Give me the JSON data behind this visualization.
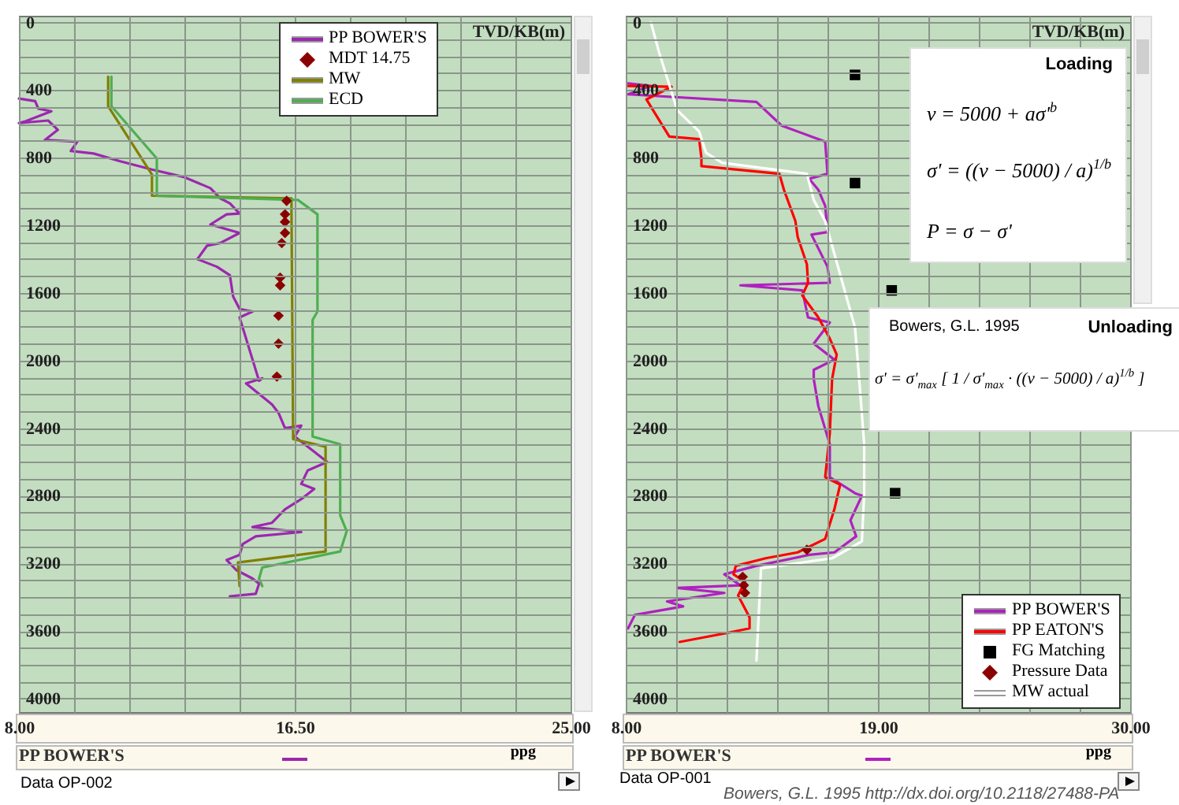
{
  "chart_data": [
    {
      "type": "line",
      "ylabel": "TVD/KB(m)",
      "xlabel": "PP BOWER'S",
      "grid": true,
      "legend": "top",
      "xlim": [
        8,
        25
      ],
      "ylim": [
        4080,
        -40
      ],
      "xticks": [
        {
          "value": 8,
          "label": "8.00"
        },
        {
          "value": 9.7,
          "label": null
        },
        {
          "value": 11.4,
          "label": null
        },
        {
          "value": 13.1,
          "label": null
        },
        {
          "value": 14.8,
          "label": null
        },
        {
          "value": 16.5,
          "label": "16.50"
        },
        {
          "value": 18.2,
          "label": null
        },
        {
          "value": 19.9,
          "label": null
        },
        {
          "value": 21.6,
          "label": null
        },
        {
          "value": 23.3,
          "label": null
        },
        {
          "value": 25,
          "label": "25.00"
        }
      ],
      "yticks": [
        0,
        {
          "value": 100,
          "label": null
        },
        {
          "value": 200,
          "label": null
        },
        {
          "value": 300,
          "label": null
        },
        400,
        {
          "value": 500,
          "label": null
        },
        {
          "value": 600,
          "label": null
        },
        {
          "value": 700,
          "label": null
        },
        800,
        {
          "value": 900,
          "label": null
        },
        {
          "value": 1000,
          "label": null
        },
        {
          "value": 1100,
          "label": null
        },
        1200,
        {
          "value": 1300,
          "label": null
        },
        {
          "value": 1400,
          "label": null
        },
        {
          "value": 1500,
          "label": null
        },
        1600,
        {
          "value": 1700,
          "label": null
        },
        {
          "value": 1800,
          "label": null
        },
        {
          "value": 1900,
          "label": null
        },
        2000,
        {
          "value": 2100,
          "label": null
        },
        {
          "value": 2200,
          "label": null
        },
        {
          "value": 2300,
          "label": null
        },
        2400,
        {
          "value": 2500,
          "label": null
        },
        {
          "value": 2600,
          "label": null
        },
        {
          "value": 2700,
          "label": null
        },
        2800,
        {
          "value": 2900,
          "label": null
        },
        {
          "value": 3000,
          "label": null
        },
        {
          "value": 3100,
          "label": null
        },
        3200,
        {
          "value": 3300,
          "label": null
        },
        {
          "value": 3400,
          "label": null
        },
        {
          "value": 3500,
          "label": null
        },
        3600,
        {
          "value": 3700,
          "label": null
        },
        {
          "value": 3800,
          "label": null
        },
        {
          "value": 3900,
          "label": null
        },
        4000
      ],
      "series": [
        {
          "name": "PP BOWER'S",
          "color": "#9c27b0",
          "x": [
            8.0,
            8.5,
            8.6,
            9.0,
            8.2,
            8.0,
            8.9,
            9.2,
            8.8,
            9.8,
            9.6,
            10.3,
            11.1,
            12.1,
            13.1,
            13.9,
            14.2,
            14.5,
            14.8,
            14.4,
            13.9,
            14.8,
            14.2,
            13.8,
            13.5,
            14.1,
            14.5,
            14.6,
            14.8,
            15.2,
            14.8,
            15.2,
            15.4,
            15.5,
            15.0,
            15.8,
            16.0,
            16.2,
            16.7,
            16.5,
            17.1,
            17.5,
            16.9,
            16.7,
            17.1,
            16.7,
            16.2,
            15.8,
            15.2,
            16.7,
            15.3,
            14.9,
            14.8,
            14.4,
            14.7,
            15.2,
            15.4,
            15.3,
            14.5
          ],
          "values": [
            450,
            465,
            510,
            525,
            585,
            595,
            580,
            635,
            695,
            705,
            760,
            775,
            820,
            870,
            915,
            980,
            1040,
            1070,
            1130,
            1135,
            1195,
            1245,
            1305,
            1320,
            1400,
            1445,
            1495,
            1620,
            1695,
            1710,
            1745,
            1995,
            2120,
            2105,
            2135,
            2260,
            2310,
            2400,
            2385,
            2450,
            2540,
            2600,
            2650,
            2730,
            2760,
            2820,
            2880,
            2960,
            2985,
            3015,
            3040,
            3085,
            3150,
            3180,
            3240,
            3290,
            3320,
            3380,
            3395
          ]
        },
        {
          "name": "MDT 14.75",
          "color": "#8b0000",
          "type": "scatter",
          "marker": "diamond",
          "x": [
            16.25,
            16.2,
            16.2,
            16.2,
            16.1,
            16.05,
            16.05,
            16.0,
            16.0,
            15.95
          ],
          "values": [
            1055,
            1135,
            1180,
            1245,
            1305,
            1510,
            1555,
            1735,
            1900,
            2095
          ]
        },
        {
          "name": "MW",
          "color": "#808000",
          "x": [
            10.75,
            10.75,
            12.1,
            12.1,
            16.4,
            16.4,
            16.45,
            17.45,
            17.45,
            14.75,
            14.8
          ],
          "values": [
            320,
            495,
            900,
            1025,
            1040,
            1120,
            2465,
            2510,
            3130,
            3195,
            3335
          ]
        },
        {
          "name": "ECD",
          "color": "#4caf50",
          "x": [
            10.85,
            10.85,
            12.25,
            12.25,
            16.6,
            17.2,
            17.2,
            17.05,
            17.05,
            17.9,
            17.9,
            18.1,
            17.9,
            15.5,
            15.4,
            15.5
          ],
          "values": [
            320,
            495,
            805,
            1025,
            1050,
            1135,
            1710,
            1760,
            2450,
            2495,
            2915,
            3010,
            3130,
            3225,
            3290,
            3335
          ]
        }
      ],
      "annotations": [
        "ppg",
        "Data OP-002"
      ]
    },
    {
      "type": "line",
      "ylabel": "TVD/KB(m)",
      "xlabel": "PP BOWER'S",
      "grid": true,
      "legend": "bottom right",
      "xlim": [
        8,
        30
      ],
      "ylim": [
        4080,
        -40
      ],
      "xticks": [
        {
          "value": 8,
          "label": "8.00"
        },
        {
          "value": 10.2,
          "label": null
        },
        {
          "value": 12.4,
          "label": null
        },
        {
          "value": 14.6,
          "label": null
        },
        {
          "value": 16.8,
          "label": null
        },
        {
          "value": 19,
          "label": "19.00"
        },
        {
          "value": 21.2,
          "label": null
        },
        {
          "value": 23.4,
          "label": null
        },
        {
          "value": 25.6,
          "label": null
        },
        {
          "value": 27.8,
          "label": null
        },
        {
          "value": 30,
          "label": "30.00"
        }
      ],
      "yticks": [
        0,
        {
          "value": 100,
          "label": null
        },
        {
          "value": 200,
          "label": null
        },
        {
          "value": 300,
          "label": null
        },
        400,
        {
          "value": 500,
          "label": null
        },
        {
          "value": 600,
          "label": null
        },
        {
          "value": 700,
          "label": null
        },
        800,
        {
          "value": 900,
          "label": null
        },
        {
          "value": 1000,
          "label": null
        },
        {
          "value": 1100,
          "label": null
        },
        1200,
        {
          "value": 1300,
          "label": null
        },
        {
          "value": 1400,
          "label": null
        },
        {
          "value": 1500,
          "label": null
        },
        1600,
        {
          "value": 1700,
          "label": null
        },
        {
          "value": 1800,
          "label": null
        },
        {
          "value": 1900,
          "label": null
        },
        2000,
        {
          "value": 2100,
          "label": null
        },
        {
          "value": 2200,
          "label": null
        },
        {
          "value": 2300,
          "label": null
        },
        2400,
        {
          "value": 2500,
          "label": null
        },
        {
          "value": 2600,
          "label": null
        },
        {
          "value": 2700,
          "label": null
        },
        2800,
        {
          "value": 2900,
          "label": null
        },
        {
          "value": 3000,
          "label": null
        },
        {
          "value": 3100,
          "label": null
        },
        3200,
        {
          "value": 3300,
          "label": null
        },
        {
          "value": 3400,
          "label": null
        },
        {
          "value": 3500,
          "label": null
        },
        3600,
        {
          "value": 3700,
          "label": null
        },
        {
          "value": 3800,
          "label": null
        },
        {
          "value": 3900,
          "label": null
        },
        4000
      ],
      "series": [
        {
          "name": "PP BOWER'S",
          "color": "#b020c0",
          "x": [
            8.1,
            9.1,
            8.1,
            13.7,
            14.8,
            16.2,
            16.7,
            16.8,
            16.0,
            16.4,
            16.7,
            16.8,
            16.1,
            16.8,
            16.9,
            13.0,
            15.7,
            15.95,
            16.9,
            16.2,
            17.1,
            16.2,
            16.2,
            16.4,
            16.9,
            16.9,
            18.0,
            18.3,
            17.8,
            18.05,
            17.1,
            16.0,
            13.7,
            12.3,
            13.0,
            10.25,
            12.3,
            9.8,
            10.5,
            8.4,
            8.1
          ],
          "values": [
            360,
            375,
            425,
            470,
            610,
            680,
            705,
            895,
            925,
            990,
            1085,
            1240,
            1255,
            1445,
            1540,
            1555,
            1585,
            1745,
            1775,
            1900,
            1995,
            2055,
            2110,
            2270,
            2495,
            2690,
            2785,
            2800,
            2945,
            3040,
            3135,
            3150,
            3215,
            3265,
            3330,
            3345,
            3375,
            3425,
            3455,
            3505,
            3585
          ]
        },
        {
          "name": "PP EATON'S",
          "color": "#ff0000",
          "x": [
            8.1,
            10.0,
            8.9,
            9.9,
            11.2,
            11.3,
            11.3,
            14.7,
            14.9,
            15.4,
            15.5,
            15.9,
            15.95,
            15.7,
            16.4,
            16.9,
            17.2,
            17.0,
            16.9,
            16.7,
            17.35,
            17.1,
            16.7,
            15.5,
            14.1,
            12.8,
            12.7,
            13.2,
            12.9,
            13.4,
            13.4,
            12.3,
            10.35
          ],
          "values": [
            375,
            380,
            455,
            675,
            690,
            800,
            850,
            895,
            990,
            1175,
            1270,
            1430,
            1540,
            1615,
            1745,
            1870,
            1965,
            2110,
            2430,
            2690,
            2735,
            2880,
            3055,
            3135,
            3170,
            3215,
            3265,
            3310,
            3390,
            3520,
            3585,
            3615,
            3665
          ]
        },
        {
          "name": "FG Matching",
          "color": "#000000",
          "type": "scatter",
          "marker": "square",
          "x": [
            18.0,
            18.0,
            19.6,
            19.75
          ],
          "values": [
            310,
            950,
            1585,
            2785
          ]
        },
        {
          "name": "Pressure Data",
          "color": "#8b0000",
          "type": "scatter",
          "marker": "diamond",
          "x": [
            15.9,
            13.1,
            13.15,
            13.2
          ],
          "values": [
            3120,
            3280,
            3330,
            3375
          ]
        },
        {
          "name": "MW actual",
          "color": "#ffffff",
          "x": [
            9.1,
            9.45,
            10.25,
            11.2,
            11.5,
            12.2,
            15.9,
            16.2,
            16.7,
            17.35,
            18.0,
            18.15,
            18.4,
            18.4,
            18.3,
            17.0,
            13.9,
            13.7
          ],
          "values": [
            0,
            175,
            520,
            645,
            770,
            830,
            895,
            1050,
            1175,
            1490,
            1805,
            2055,
            2495,
            2785,
            3070,
            3170,
            3230,
            3775
          ]
        }
      ],
      "annotations": [
        "Loading",
        "v = 5000 + aσ'$^{b}$",
        "σ' = ((v − 5000) / a)$^{1/b}$",
        "P = σ − σ'",
        "Bowers, G.L. 1995",
        "Unloading",
        "σ' = σ'$_{max}$ [ 1 / σ'$_{max}$ · ((v − 5000) / a)$^{1/b}$ ]",
        "ppg",
        "Data OP-001",
        "Bowers, G.L. 1995 http://dx.doi.org/10.2118/27488-PA"
      ]
    }
  ]
}
